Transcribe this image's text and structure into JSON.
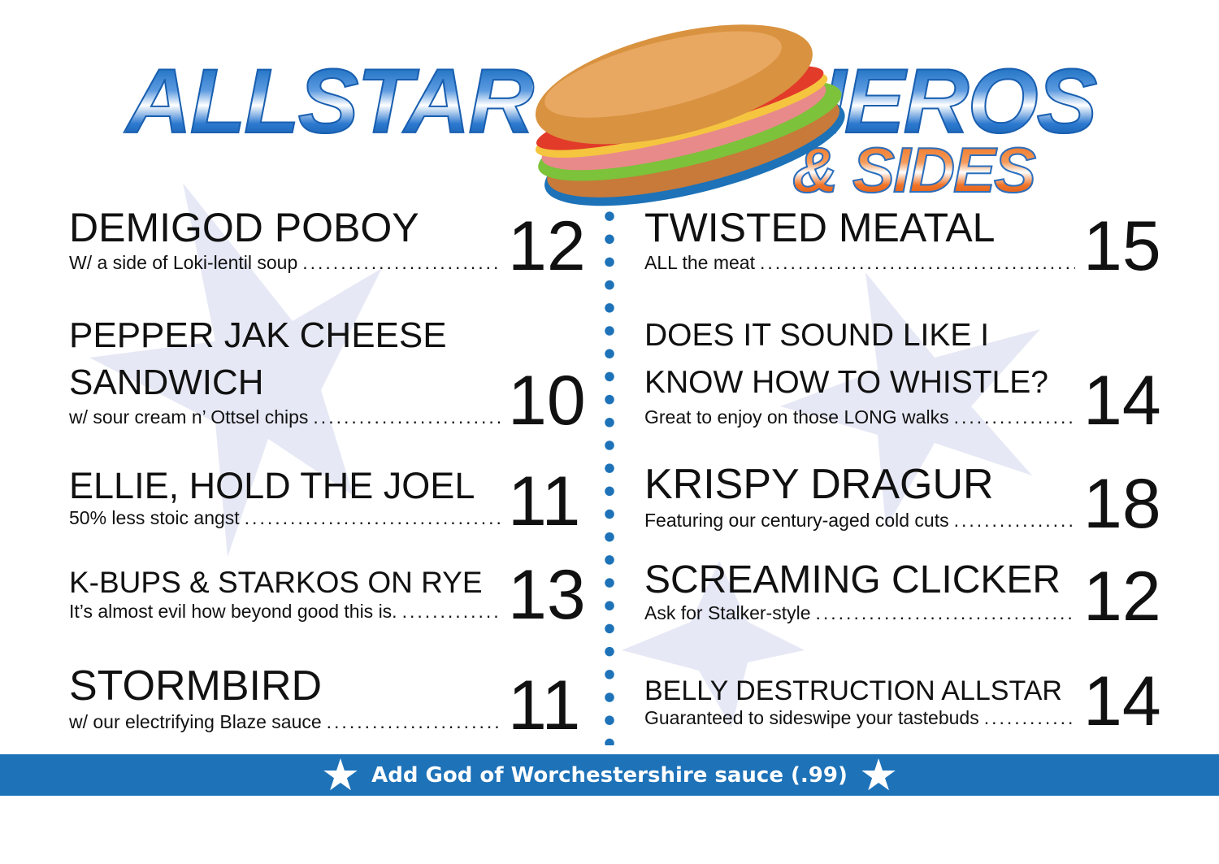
{
  "header": {
    "logo_word1": "ALLSTAR",
    "logo_word2": "HEROS",
    "logo_word3": "& SIDES",
    "logo_image": "sub-sandwich-illustration"
  },
  "colors": {
    "accent_blue": "#1d72b8",
    "accent_orange": "#f07a2a",
    "bg_star": "#e6e8f5"
  },
  "menu": {
    "left": [
      {
        "title_lines": [
          "Demigod Poboy"
        ],
        "subtitle": "W/ a side of Loki-lentil soup",
        "price": "12"
      },
      {
        "title_lines": [
          "Pepper Jak Cheese",
          "Sandwich"
        ],
        "subtitle": "w/ sour cream n’ Ottsel chips",
        "price": "10"
      },
      {
        "title_lines": [
          "Ellie, Hold the Joel"
        ],
        "subtitle": "50% less stoic angst",
        "price": "11"
      },
      {
        "title_lines": [
          "K-Bups & Starkos on Rye"
        ],
        "subtitle": "It’s almost evil how beyond good this is.",
        "price": "13"
      },
      {
        "title_lines": [
          "Stormbird"
        ],
        "subtitle": "w/ our electrifying Blaze sauce",
        "price": "11"
      }
    ],
    "right": [
      {
        "title_lines": [
          "Twisted Meatal"
        ],
        "subtitle": "ALL the meat",
        "price": "15"
      },
      {
        "title_lines": [
          "Does it sound like I",
          "know how to whistle?"
        ],
        "subtitle": "Great to enjoy on those LONG walks",
        "price": "14"
      },
      {
        "title_lines": [
          "Krispy Dragur"
        ],
        "subtitle": "Featuring our century-aged cold cuts",
        "price": "18"
      },
      {
        "title_lines": [
          "Screaming Clicker"
        ],
        "subtitle": "Ask for Stalker-style",
        "price": "12"
      },
      {
        "title_lines": [
          "Belly Destruction Allstar"
        ],
        "subtitle": "Guaranteed to sideswipe your tastebuds",
        "price": "14"
      }
    ]
  },
  "banner": {
    "text": "Add God of Worchestershire sauce (.99)",
    "icon": "star-icon"
  }
}
